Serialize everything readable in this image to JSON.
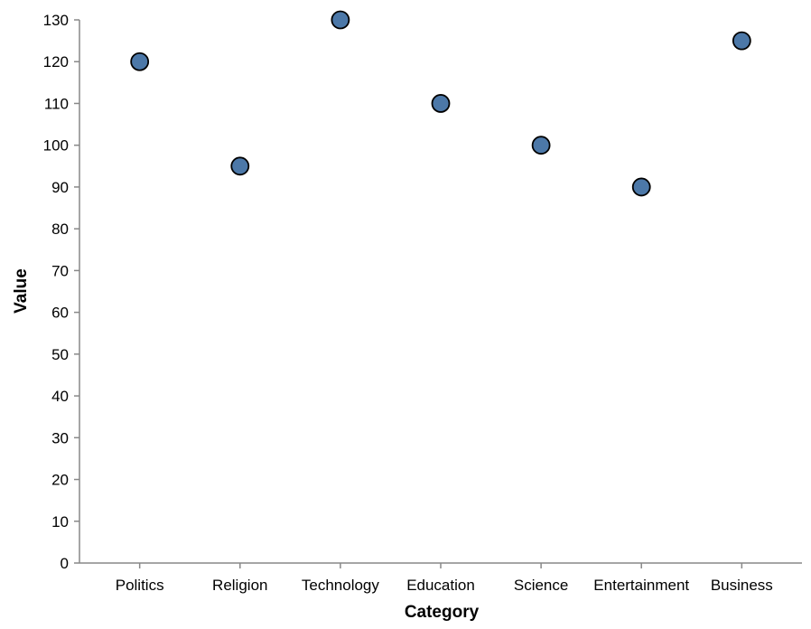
{
  "chart_data": {
    "type": "scatter",
    "categories": [
      "Politics",
      "Religion",
      "Technology",
      "Education",
      "Science",
      "Entertainment",
      "Business"
    ],
    "values": [
      120,
      95,
      130,
      110,
      100,
      90,
      125
    ],
    "xlabel": "Category",
    "ylabel": "Value",
    "ylim": [
      0,
      130
    ],
    "yticks": [
      0,
      10,
      20,
      30,
      40,
      50,
      60,
      70,
      80,
      90,
      100,
      110,
      120,
      130
    ],
    "grid": false,
    "colors": {
      "point_fill": "#4c78a8",
      "point_stroke": "#000000",
      "axis": "#888888"
    }
  }
}
